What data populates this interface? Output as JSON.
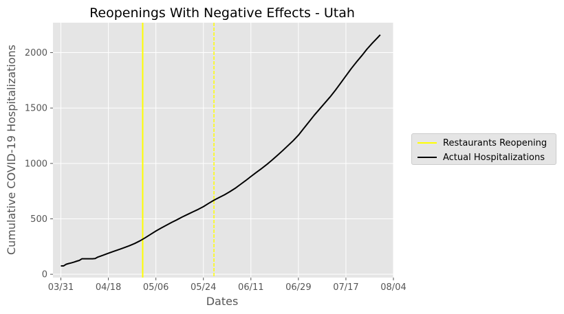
{
  "chart_data": {
    "type": "line",
    "title": "Reopenings With Negative Effects - Utah",
    "xlabel": "Dates",
    "ylabel": "Cumulative COVID-19 Hospitalizations",
    "x_ticks": [
      "03/31",
      "04/18",
      "05/06",
      "05/24",
      "06/11",
      "06/29",
      "07/17",
      "08/04"
    ],
    "y_ticks": [
      "0",
      "500",
      "1000",
      "1500",
      "2000"
    ],
    "xlim": [
      "2020-03-28",
      "2020-08-04"
    ],
    "ylim": [
      -30,
      2270
    ],
    "grid": true,
    "legend_position": "right",
    "vlines": [
      {
        "name": "Restaurants Reopening",
        "date": "2020-05-01",
        "color": "#ffff00",
        "style": "solid"
      },
      {
        "name": "Restaurants Reopening",
        "date": "2020-05-28",
        "color": "#ffff00",
        "style": "dashed"
      }
    ],
    "series": [
      {
        "name": "Actual Hospitalizations",
        "color": "#000000",
        "points": [
          [
            "2020-03-31",
            75
          ],
          [
            "2020-04-01",
            75
          ],
          [
            "2020-04-02",
            90
          ],
          [
            "2020-04-03",
            97
          ],
          [
            "2020-04-04",
            103
          ],
          [
            "2020-04-05",
            110
          ],
          [
            "2020-04-06",
            118
          ],
          [
            "2020-04-07",
            125
          ],
          [
            "2020-04-08",
            140
          ],
          [
            "2020-04-09",
            140
          ],
          [
            "2020-04-10",
            140
          ],
          [
            "2020-04-11",
            140
          ],
          [
            "2020-04-12",
            140
          ],
          [
            "2020-04-13",
            142
          ],
          [
            "2020-04-14",
            155
          ],
          [
            "2020-04-16",
            172
          ],
          [
            "2020-04-18",
            190
          ],
          [
            "2020-04-20",
            207
          ],
          [
            "2020-04-22",
            223
          ],
          [
            "2020-04-24",
            240
          ],
          [
            "2020-04-26",
            258
          ],
          [
            "2020-04-28",
            278
          ],
          [
            "2020-04-30",
            302
          ],
          [
            "2020-05-02",
            330
          ],
          [
            "2020-05-04",
            360
          ],
          [
            "2020-05-06",
            390
          ],
          [
            "2020-05-08",
            417
          ],
          [
            "2020-05-10",
            443
          ],
          [
            "2020-05-12",
            468
          ],
          [
            "2020-05-14",
            492
          ],
          [
            "2020-05-16",
            517
          ],
          [
            "2020-05-18",
            540
          ],
          [
            "2020-05-20",
            563
          ],
          [
            "2020-05-22",
            585
          ],
          [
            "2020-05-24",
            610
          ],
          [
            "2020-05-26",
            640
          ],
          [
            "2020-05-28",
            668
          ],
          [
            "2020-05-30",
            693
          ],
          [
            "2020-06-01",
            717
          ],
          [
            "2020-06-03",
            745
          ],
          [
            "2020-06-05",
            775
          ],
          [
            "2020-06-07",
            810
          ],
          [
            "2020-06-09",
            845
          ],
          [
            "2020-06-11",
            882
          ],
          [
            "2020-06-13",
            918
          ],
          [
            "2020-06-15",
            953
          ],
          [
            "2020-06-17",
            990
          ],
          [
            "2020-06-19",
            1030
          ],
          [
            "2020-06-21",
            1072
          ],
          [
            "2020-06-23",
            1115
          ],
          [
            "2020-06-25",
            1160
          ],
          [
            "2020-06-27",
            1205
          ],
          [
            "2020-06-29",
            1255
          ],
          [
            "2020-07-01",
            1315
          ],
          [
            "2020-07-03",
            1375
          ],
          [
            "2020-07-05",
            1435
          ],
          [
            "2020-07-07",
            1490
          ],
          [
            "2020-07-09",
            1545
          ],
          [
            "2020-07-11",
            1600
          ],
          [
            "2020-07-13",
            1660
          ],
          [
            "2020-07-15",
            1725
          ],
          [
            "2020-07-17",
            1790
          ],
          [
            "2020-07-19",
            1855
          ],
          [
            "2020-07-21",
            1915
          ],
          [
            "2020-07-23",
            1972
          ],
          [
            "2020-07-25",
            2032
          ],
          [
            "2020-07-27",
            2085
          ],
          [
            "2020-07-29",
            2135
          ],
          [
            "2020-07-30",
            2160
          ]
        ]
      }
    ],
    "legend": [
      "Restaurants Reopening",
      "Actual Hospitalizations"
    ],
    "colors": {
      "background": "#e5e5e5",
      "grid": "#ffffff",
      "axis_text": "#555555"
    }
  }
}
